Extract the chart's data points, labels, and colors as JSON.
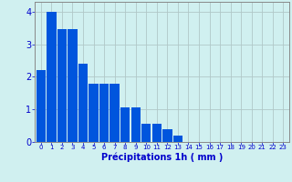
{
  "categories": [
    0,
    1,
    2,
    3,
    4,
    5,
    6,
    7,
    8,
    9,
    10,
    11,
    12,
    13,
    14,
    15,
    16,
    17,
    18,
    19,
    20,
    21,
    22,
    23
  ],
  "values": [
    2.2,
    4.0,
    3.45,
    3.45,
    2.4,
    1.8,
    1.8,
    1.8,
    1.05,
    1.05,
    0.55,
    0.55,
    0.4,
    0.2,
    0.0,
    0.0,
    0.0,
    0.0,
    0.0,
    0.0,
    0.0,
    0.0,
    0.0,
    0.0
  ],
  "bar_color": "#0055dd",
  "bg_color": "#d0f0f0",
  "grid_color": "#b0c8c8",
  "xlabel": "Précipitations 1h ( mm )",
  "xlabel_color": "#0000cc",
  "tick_color": "#0000cc",
  "ylim": [
    0,
    4.3
  ],
  "yticks": [
    0,
    1,
    2,
    3,
    4
  ],
  "spine_color": "#888888"
}
